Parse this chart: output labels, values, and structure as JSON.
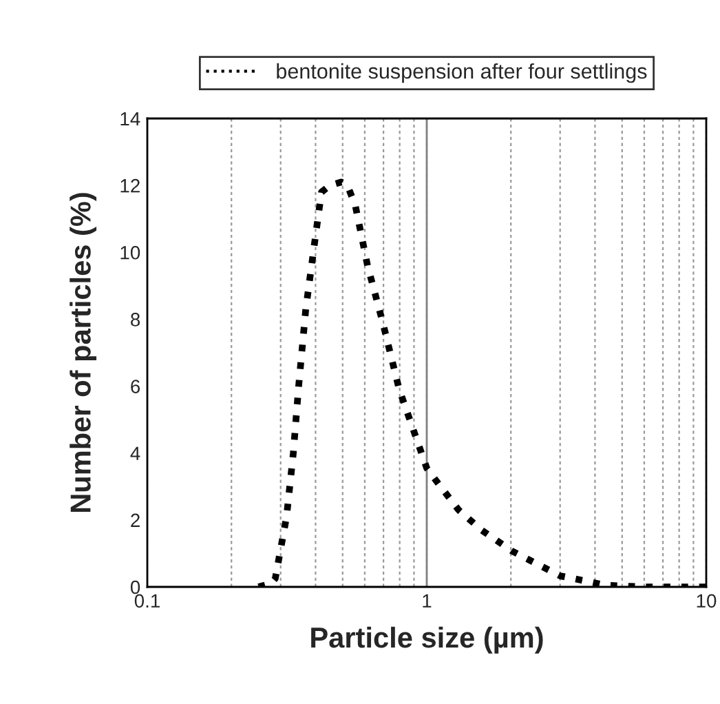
{
  "chart_data": {
    "type": "line",
    "xlabel": "Particle size (µm)",
    "ylabel": "Number of particles (%)",
    "log": "x",
    "grid": "x",
    "legend": "top",
    "line_style": "dotted",
    "xlim": [
      0.1,
      10
    ],
    "ylim": [
      0,
      14
    ],
    "xticks": [
      0.1,
      {
        "value": 0.2,
        "label": null
      },
      {
        "value": 0.3,
        "label": null
      },
      {
        "value": 0.4,
        "label": null
      },
      {
        "value": 0.5,
        "label": null
      },
      {
        "value": 0.6,
        "label": null
      },
      {
        "value": 0.7,
        "label": null
      },
      {
        "value": 0.8,
        "label": null
      },
      {
        "value": 0.9,
        "label": null
      },
      1,
      {
        "value": 2,
        "label": null
      },
      {
        "value": 3,
        "label": null
      },
      {
        "value": 4,
        "label": null
      },
      {
        "value": 5,
        "label": null
      },
      {
        "value": 6,
        "label": null
      },
      {
        "value": 7,
        "label": null
      },
      {
        "value": 8,
        "label": null
      },
      {
        "value": 9,
        "label": null
      },
      10
    ],
    "yticks": [
      0,
      2,
      4,
      6,
      8,
      10,
      12,
      14
    ],
    "ref_lines": [
      {
        "axis": "x",
        "value": 1,
        "color": "#808080",
        "line_style": "solid"
      }
    ],
    "series": [
      {
        "name": "bentonite suspension after four settlings",
        "color": "#000000",
        "x": [
          0.25,
          0.277,
          0.287,
          0.315,
          0.333,
          0.348,
          0.369,
          0.4,
          0.42,
          0.45,
          0.495,
          0.52,
          0.555,
          0.614,
          0.696,
          0.797,
          1.0,
          1.12,
          1.3,
          1.57,
          2.02,
          3.0,
          4.37,
          6.0,
          10
        ],
        "values": [
          0,
          0.1,
          0.25,
          2.1,
          4,
          6,
          8.3,
          10.5,
          11.8,
          12.0,
          12.1,
          12.0,
          11.4,
          9.6,
          7.9,
          5.9,
          3.55,
          3.0,
          2.3,
          1.7,
          1.07,
          0.33,
          0.05,
          0,
          0
        ]
      }
    ]
  }
}
